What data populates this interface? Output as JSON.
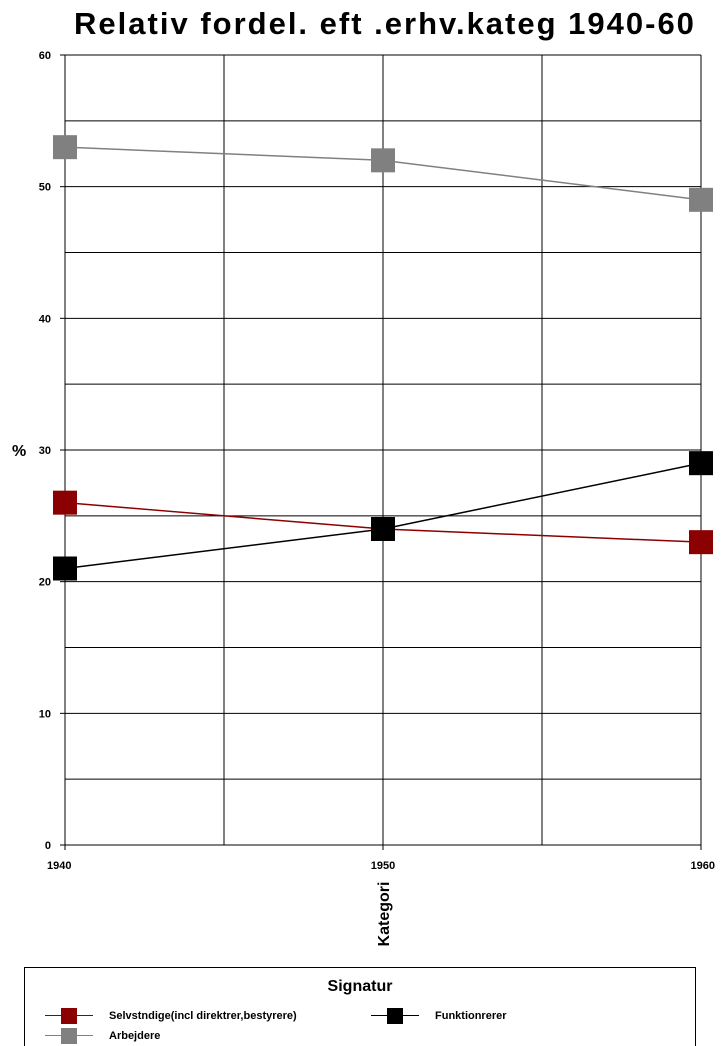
{
  "chart_data": {
    "type": "line",
    "title": "Relativ fordel. eft .erhv.kateg 1940-60",
    "xlabel": "Kategori",
    "ylabel": "%",
    "x": [
      "1940",
      "1950",
      "1960"
    ],
    "ylim": [
      0,
      60
    ],
    "yticks": [
      0,
      10,
      20,
      30,
      40,
      50,
      60
    ],
    "grid": true,
    "series": [
      {
        "name": "Selvstndige(incl direktrer,bestyrere)",
        "values": [
          26,
          24,
          23
        ],
        "color": "#8b0000"
      },
      {
        "name": "Funktionrerer",
        "values": [
          21,
          24,
          29
        ],
        "color": "#000000"
      },
      {
        "name": "Arbejdere",
        "values": [
          53,
          52,
          49
        ],
        "color": "#808080"
      }
    ],
    "legend": {
      "title": "Signatur",
      "placement": "bottom"
    }
  }
}
